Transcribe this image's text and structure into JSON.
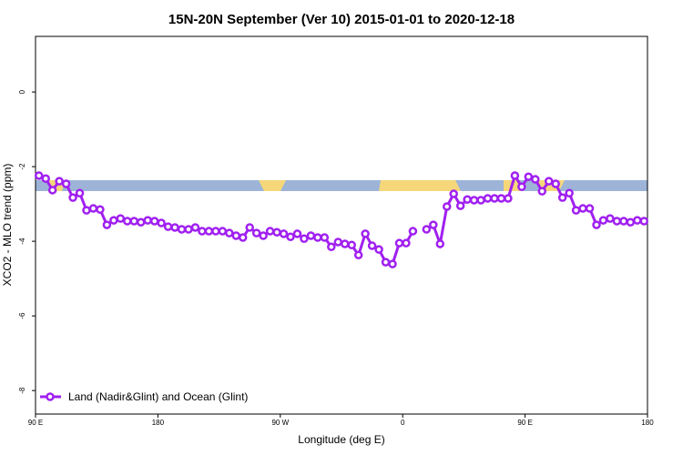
{
  "chart_data": {
    "type": "line",
    "title": "15N-20N September (Ver 10)   2015-01-01 to 2020-12-18",
    "xlabel": "Longitude (deg E)",
    "ylabel": "XCO2 - MLO trend (ppm)",
    "xlim": [
      90,
      540
    ],
    "ylim": [
      -8.63,
      1.49
    ],
    "xticks": [
      {
        "value": 90,
        "label": "90 E"
      },
      180,
      {
        "value": 270,
        "label": "90 W"
      },
      {
        "value": 360,
        "label": "0"
      },
      {
        "value": 450,
        "label": "90 E"
      },
      {
        "value": 540,
        "label": "180"
      }
    ],
    "yticks": [
      0,
      -2,
      -4,
      -6,
      -8
    ],
    "legend": "bottom-left",
    "x": [
      92.5,
      97.5,
      102.5,
      107.5,
      112.5,
      117.5,
      122.5,
      127.5,
      132.5,
      137.5,
      142.5,
      147.5,
      152.5,
      157.5,
      162.5,
      167.5,
      172.5,
      177.5,
      182.5,
      187.5,
      192.5,
      197.5,
      202.5,
      207.5,
      212.5,
      217.5,
      222.5,
      227.5,
      232.5,
      237.5,
      242.5,
      247.5,
      252.5,
      257.5,
      262.5,
      267.5,
      272.5,
      277.5,
      282.5,
      287.5,
      292.5,
      297.5,
      302.5,
      307.5,
      312.5,
      317.5,
      322.5,
      327.5,
      332.5,
      337.5,
      342.5,
      347.5,
      352.5,
      357.5,
      362.5,
      367.5,
      372.5,
      377.5,
      382.5,
      387.5,
      392.5,
      397.5,
      402.5,
      407.5,
      412.5,
      417.5,
      422.5,
      427.5,
      432.5,
      437.5,
      442.5,
      447.5,
      452.5,
      457.5,
      462.5,
      467.5,
      472.5,
      477.5,
      482.5,
      487.5,
      492.5,
      497.5,
      502.5,
      507.5,
      512.5,
      517.5,
      522.5,
      527.5,
      532.5,
      537.5
    ],
    "series": [
      {
        "name": "Land (Nadir&Glint) and Ocean (Glint)",
        "color": "#a020f0",
        "values": [
          -2.24,
          -2.32,
          -2.63,
          -2.39,
          -2.46,
          -2.83,
          -2.71,
          -3.17,
          -3.12,
          -3.15,
          -3.56,
          -3.44,
          -3.39,
          -3.46,
          -3.46,
          -3.49,
          -3.44,
          -3.46,
          -3.51,
          -3.61,
          -3.63,
          -3.68,
          -3.68,
          -3.63,
          -3.73,
          -3.73,
          -3.73,
          -3.73,
          -3.78,
          -3.85,
          -3.9,
          -3.63,
          -3.78,
          -3.85,
          -3.73,
          -3.76,
          -3.8,
          -3.88,
          -3.8,
          -3.93,
          -3.85,
          -3.9,
          -3.9,
          -4.15,
          -4.02,
          -4.07,
          -4.1,
          -4.37,
          -3.8,
          -4.12,
          -4.22,
          -4.56,
          -4.61,
          -4.05,
          -4.05,
          -3.73,
          null,
          -3.68,
          -3.56,
          -4.07,
          -3.07,
          -2.73,
          -3.05,
          -2.88,
          -2.9,
          -2.9,
          -2.85,
          -2.85,
          -2.85,
          -2.85,
          -2.24,
          -2.54,
          -2.27,
          -2.34,
          -2.66,
          -2.39,
          -2.46,
          -2.83,
          -2.71,
          -3.17,
          -3.12,
          -3.12,
          -3.56,
          -3.44,
          -3.39,
          -3.46,
          -3.46,
          -3.49,
          -3.44,
          -3.46
        ]
      }
    ]
  }
}
